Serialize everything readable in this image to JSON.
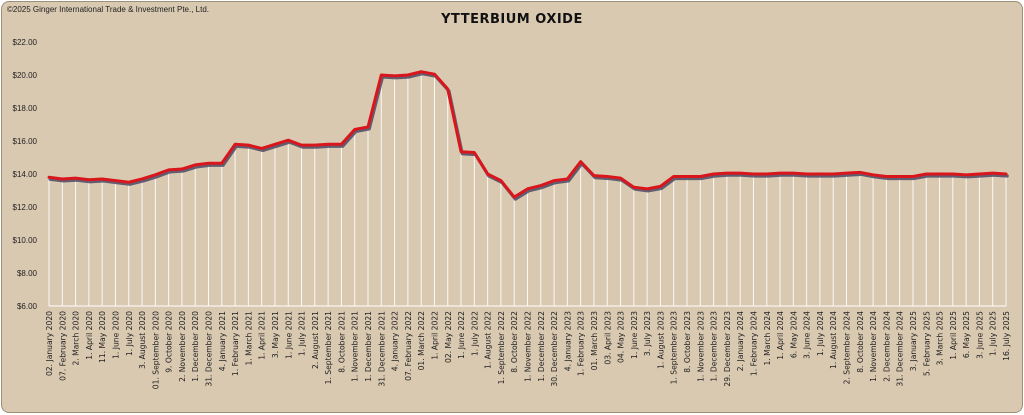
{
  "copyright": "©2025 Ginger International Trade & Investment Pte., Ltd.",
  "chart_data": {
    "type": "line",
    "title": "YTTERBIUM OXIDE",
    "xlabel": "",
    "ylabel": "",
    "ylim": [
      6,
      22
    ],
    "y_ticks": [
      "$6.00",
      "$8.00",
      "$10.00",
      "$12.00",
      "$14.00",
      "$16.00",
      "$18.00",
      "$20.00",
      "$22.00"
    ],
    "grid": false,
    "line_color": "#d8161c",
    "shadow_color": "#4a4a66",
    "categories": [
      "02. January 2020",
      "07. February 2020",
      "2. March 2020",
      "1. April 2020",
      "11. May 2020",
      "1. June 2020",
      "1. July 2020",
      "3. August 2020",
      "01. September 2020",
      "9. October 2020",
      "2. November 2020",
      "1. December 2020",
      "31. December 2020",
      "4. January 2021",
      "1. February 2021",
      "1. March 2021",
      "1. April 2021",
      "3. May 2021",
      "1. June 2021",
      "1. July 2021",
      "2. August 2021",
      "1. September 2021",
      "8. October 2021",
      "1. November 2021",
      "1. December 2021",
      "31. December 2021",
      "4. January 2022",
      "07. February 2022",
      "01. March 2022",
      "1. April 2022",
      "02. May 2022",
      "1. June 2022",
      "1. July 2022",
      "1. August 2022",
      "1. September 2022",
      "8. October 2022",
      "1. November 2022",
      "1. December 2022",
      "30. December 2022",
      "4. January 2023",
      "1. February 2023",
      "01. March 2023",
      "03. April 2023",
      "04. May 2023",
      "1. June 2023",
      "3. July 2023",
      "1. August 2023",
      "1. September 2023",
      "8. October 2023",
      "1. November 2023",
      "1. December 2023",
      "29. December 2023",
      "2. January 2024",
      "1. February 2024",
      "1. March 2024",
      "1. April 2024",
      "6. May 2024",
      "3. June 2024",
      "1. July 2024",
      "1. August 2024",
      "2. September 2024",
      "8. October 2024",
      "1. November 2024",
      "2. December 2024",
      "31. December 2024",
      "3. January 2025",
      "5. February 2025",
      "3. March 2025",
      "1. April 2025",
      "6. May 2025",
      "3. June 2025",
      "1. July 2025",
      "16. July 2025"
    ],
    "values": [
      13.8,
      13.7,
      13.75,
      13.65,
      13.7,
      13.6,
      13.5,
      13.7,
      13.95,
      14.25,
      14.3,
      14.55,
      14.65,
      14.65,
      15.8,
      15.75,
      15.55,
      15.8,
      16.05,
      15.75,
      15.75,
      15.8,
      15.8,
      16.7,
      16.85,
      20.0,
      19.95,
      20.0,
      20.2,
      20.05,
      19.15,
      15.35,
      15.3,
      14.0,
      13.6,
      12.6,
      13.1,
      13.3,
      13.6,
      13.7,
      14.75,
      13.9,
      13.85,
      13.75,
      13.2,
      13.1,
      13.25,
      13.85,
      13.85,
      13.85,
      14.0,
      14.05,
      14.05,
      14.0,
      14.0,
      14.05,
      14.05,
      14.0,
      14.0,
      14.0,
      14.05,
      14.1,
      13.95,
      13.85,
      13.85,
      13.85,
      14.0,
      14.0,
      14.0,
      13.95,
      14.0,
      14.05,
      14.0
    ]
  }
}
